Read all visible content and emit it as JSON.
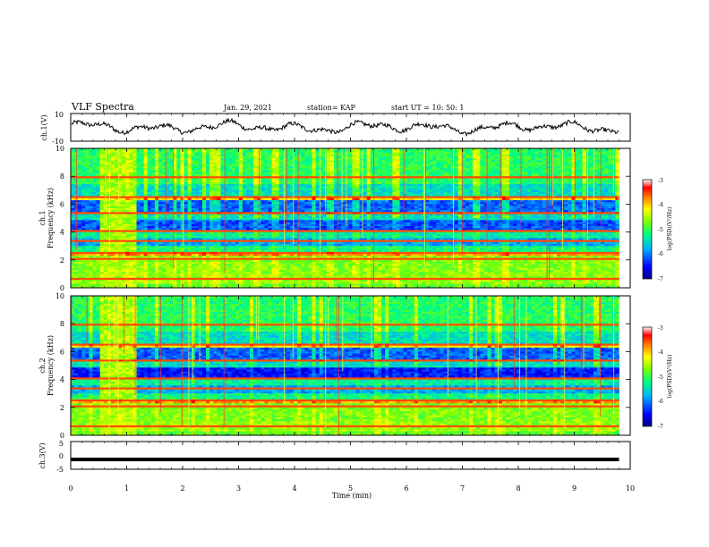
{
  "header": {
    "title": "VLF Spectra",
    "date": "Jan. 29, 2021",
    "station": "station= KAP",
    "start": "start  UT =   10: 50: 1"
  },
  "chart_data": [
    {
      "type": "line",
      "panel": "ch1-waveform",
      "ylabel": "ch.1(V)",
      "ylim": [
        -10,
        10
      ],
      "yticks": [
        "10",
        "-10"
      ],
      "xlim": [
        0,
        10
      ],
      "note": "noisy waveform oscillating roughly between -7 and 6 V",
      "color": "#000000"
    },
    {
      "type": "heatmap",
      "panel": "ch1-spectrogram",
      "ylabel": "ch.1\nFrequency (kHz)",
      "ylabel_line1": "ch.1",
      "ylabel_line2": "Frequency  (kHz)",
      "ylim": [
        0,
        10
      ],
      "yticks": [
        "0",
        "2",
        "4",
        "6",
        "8",
        "10"
      ],
      "xlim": [
        0,
        10
      ],
      "data_end_min": 9.8,
      "burst_interval_min": [
        0.5,
        1.15
      ],
      "colorbar": {
        "label": "log(PSD)(V²/Hz)",
        "range": [
          -7,
          -3
        ],
        "ticks": [
          "-3",
          "-4",
          "-5",
          "-6",
          "-7"
        ],
        "colors": [
          "#000080",
          "#0000ff",
          "#00b0ff",
          "#00ff80",
          "#80ff00",
          "#ffff00",
          "#ff8000",
          "#ff0000",
          "#ffffff"
        ]
      }
    },
    {
      "type": "heatmap",
      "panel": "ch2-spectrogram",
      "ylabel_line1": "ch.2",
      "ylabel_line2": "Frequency  (kHz)",
      "ylim": [
        0,
        10
      ],
      "yticks": [
        "0",
        "2",
        "4",
        "6",
        "8",
        "10"
      ],
      "xlim": [
        0,
        10
      ],
      "data_end_min": 9.8,
      "burst_interval_min": [
        0.5,
        1.15
      ],
      "colorbar": {
        "label": "log(PSD)(V²/Hz)",
        "range": [
          -7,
          -3
        ],
        "ticks": [
          "-3",
          "-4",
          "-5",
          "-6",
          "-7"
        ]
      }
    },
    {
      "type": "line",
      "panel": "ch3-waveform",
      "ylabel": "ch.3(V)",
      "ylim": [
        -5,
        5
      ],
      "yticks": [
        "5",
        "0",
        "-5"
      ],
      "xlim": [
        0,
        10
      ],
      "xlabel": "Time  (min)",
      "xticks": [
        "0",
        "1",
        "2",
        "3",
        "4",
        "5",
        "6",
        "7",
        "8",
        "9",
        "10"
      ],
      "note": "nearly constant thick trace around -1.5 V",
      "level": -1.5,
      "color": "#000000"
    }
  ]
}
